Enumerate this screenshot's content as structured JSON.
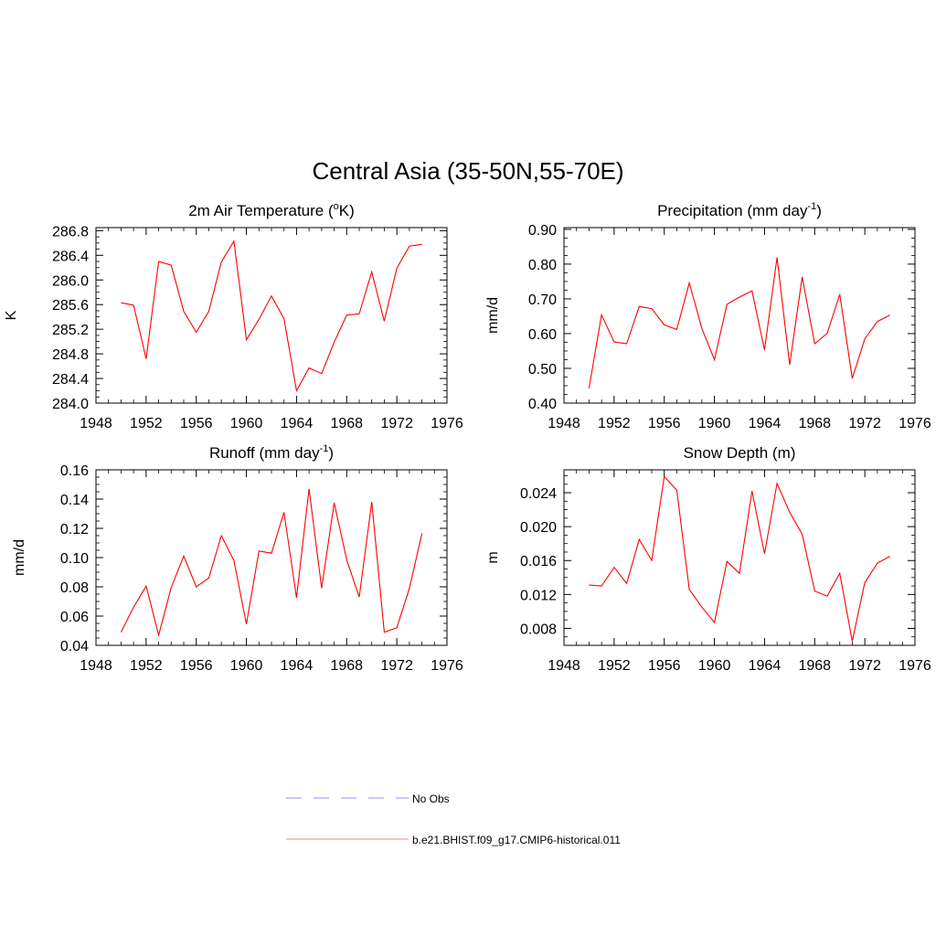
{
  "figure": {
    "title": "Central Asia (35-50N,55-70E)"
  },
  "legend": {
    "entries": [
      {
        "label": "No Obs",
        "color": "#a9a9ff",
        "style": "dashed"
      },
      {
        "label": "b.e21.BHIST.f09_g17.CMIP6-historical.011",
        "color": "#ff0000",
        "style": "solid"
      }
    ]
  },
  "chart_data": [
    {
      "type": "line",
      "title": "2m Air Temperature (°K)",
      "title_parts": {
        "pre": "2m Air Temperature (",
        "sup": "o",
        "post": "K)"
      },
      "ylabel": "K",
      "xlabel": "",
      "xlim": [
        1948,
        1976
      ],
      "ylim": [
        284.0,
        286.85
      ],
      "xticks": [
        1948,
        1952,
        1956,
        1960,
        1964,
        1968,
        1972,
        1976
      ],
      "xtick_labels": [
        "1948",
        "1952",
        "1956",
        "1960",
        "1964",
        "1968",
        "1972",
        "1976"
      ],
      "yticks": [
        284.0,
        284.4,
        284.8,
        285.2,
        285.6,
        286.0,
        286.4,
        286.8
      ],
      "ytick_labels": [
        "284.0",
        "284.4",
        "284.8",
        "285.2",
        "285.6",
        "286.0",
        "286.4",
        "286.8"
      ],
      "series": [
        {
          "name": "b.e21.BHIST.f09_g17.CMIP6-historical.011",
          "color": "#ff0000",
          "x": [
            1950,
            1951,
            1952,
            1953,
            1954,
            1955,
            1956,
            1957,
            1958,
            1959,
            1960,
            1961,
            1962,
            1963,
            1964,
            1965,
            1966,
            1967,
            1968,
            1969,
            1970,
            1971,
            1972,
            1973,
            1974
          ],
          "values": [
            285.63,
            285.59,
            284.72,
            286.3,
            286.24,
            285.49,
            285.15,
            285.49,
            286.29,
            286.63,
            285.03,
            285.36,
            285.74,
            285.37,
            284.2,
            284.57,
            284.48,
            284.99,
            285.43,
            285.45,
            286.13,
            285.33,
            286.19,
            286.55,
            286.58
          ]
        }
      ]
    },
    {
      "type": "line",
      "title": "Precipitation (mm day-1)",
      "title_parts": {
        "pre": "Precipitation (mm day",
        "sup": "-1",
        "post": ")"
      },
      "ylabel": "mm/d",
      "xlabel": "",
      "xlim": [
        1948,
        1976
      ],
      "ylim": [
        0.4,
        0.905
      ],
      "xticks": [
        1948,
        1952,
        1956,
        1960,
        1964,
        1968,
        1972,
        1976
      ],
      "xtick_labels": [
        "1948",
        "1952",
        "1956",
        "1960",
        "1964",
        "1968",
        "1972",
        "1976"
      ],
      "yticks": [
        0.4,
        0.5,
        0.6,
        0.7,
        0.8,
        0.9
      ],
      "ytick_labels": [
        "0.40",
        "0.50",
        "0.60",
        "0.70",
        "0.80",
        "0.90"
      ],
      "series": [
        {
          "name": "b.e21.BHIST.f09_g17.CMIP6-historical.011",
          "color": "#ff0000",
          "x": [
            1950,
            1951,
            1952,
            1953,
            1954,
            1955,
            1956,
            1957,
            1958,
            1959,
            1960,
            1961,
            1962,
            1963,
            1964,
            1965,
            1966,
            1967,
            1968,
            1969,
            1970,
            1971,
            1972,
            1973,
            1974
          ],
          "values": [
            0.443,
            0.654,
            0.576,
            0.571,
            0.678,
            0.672,
            0.625,
            0.612,
            0.746,
            0.614,
            0.525,
            0.684,
            0.705,
            0.723,
            0.553,
            0.819,
            0.51,
            0.763,
            0.571,
            0.601,
            0.713,
            0.471,
            0.585,
            0.635,
            0.653
          ]
        }
      ]
    },
    {
      "type": "line",
      "title": "Runoff (mm day-1)",
      "title_parts": {
        "pre": "Runoff (mm day",
        "sup": "-1",
        "post": ")"
      },
      "ylabel": "mm/d",
      "xlabel": "",
      "xlim": [
        1948,
        1976
      ],
      "ylim": [
        0.04,
        0.16
      ],
      "xticks": [
        1948,
        1952,
        1956,
        1960,
        1964,
        1968,
        1972,
        1976
      ],
      "xtick_labels": [
        "1948",
        "1952",
        "1956",
        "1960",
        "1964",
        "1968",
        "1972",
        "1976"
      ],
      "yticks": [
        0.04,
        0.06,
        0.08,
        0.1,
        0.12,
        0.14,
        0.16
      ],
      "ytick_labels": [
        "0.04",
        "0.06",
        "0.08",
        "0.10",
        "0.12",
        "0.14",
        "0.16"
      ],
      "series": [
        {
          "name": "b.e21.BHIST.f09_g17.CMIP6-historical.011",
          "color": "#ff0000",
          "x": [
            1950,
            1951,
            1952,
            1953,
            1954,
            1955,
            1956,
            1957,
            1958,
            1959,
            1960,
            1961,
            1962,
            1963,
            1964,
            1965,
            1966,
            1967,
            1968,
            1969,
            1970,
            1971,
            1972,
            1973,
            1974
          ],
          "values": [
            0.049,
            0.066,
            0.0805,
            0.047,
            0.0795,
            0.101,
            0.08,
            0.086,
            0.115,
            0.098,
            0.0545,
            0.1045,
            0.103,
            0.131,
            0.0725,
            0.147,
            0.079,
            0.1375,
            0.0985,
            0.073,
            0.138,
            0.049,
            0.052,
            0.079,
            0.1165
          ]
        }
      ]
    },
    {
      "type": "line",
      "title": "Snow Depth (m)",
      "title_parts": {
        "pre": "Snow Depth (m)",
        "sup": "",
        "post": ""
      },
      "ylabel": "m",
      "xlabel": "",
      "xlim": [
        1948,
        1976
      ],
      "ylim": [
        0.006,
        0.0267
      ],
      "xticks": [
        1948,
        1952,
        1956,
        1960,
        1964,
        1968,
        1972,
        1976
      ],
      "xtick_labels": [
        "1948",
        "1952",
        "1956",
        "1960",
        "1964",
        "1968",
        "1972",
        "1976"
      ],
      "yticks": [
        0.008,
        0.012,
        0.016,
        0.02,
        0.024
      ],
      "ytick_labels": [
        "0.008",
        "0.012",
        "0.016",
        "0.020",
        "0.024"
      ],
      "series": [
        {
          "name": "b.e21.BHIST.f09_g17.CMIP6-historical.011",
          "color": "#ff0000",
          "x": [
            1950,
            1951,
            1952,
            1953,
            1954,
            1955,
            1956,
            1957,
            1958,
            1959,
            1960,
            1961,
            1962,
            1963,
            1964,
            1965,
            1966,
            1967,
            1968,
            1969,
            1970,
            1971,
            1972,
            1973,
            1974
          ],
          "values": [
            0.0131,
            0.013,
            0.0152,
            0.0133,
            0.0185,
            0.016,
            0.0259,
            0.0243,
            0.0126,
            0.0105,
            0.0087,
            0.0159,
            0.0145,
            0.0242,
            0.0168,
            0.0251,
            0.0217,
            0.0191,
            0.0124,
            0.0118,
            0.0145,
            0.0065,
            0.0134,
            0.0157,
            0.0165
          ]
        }
      ]
    }
  ]
}
